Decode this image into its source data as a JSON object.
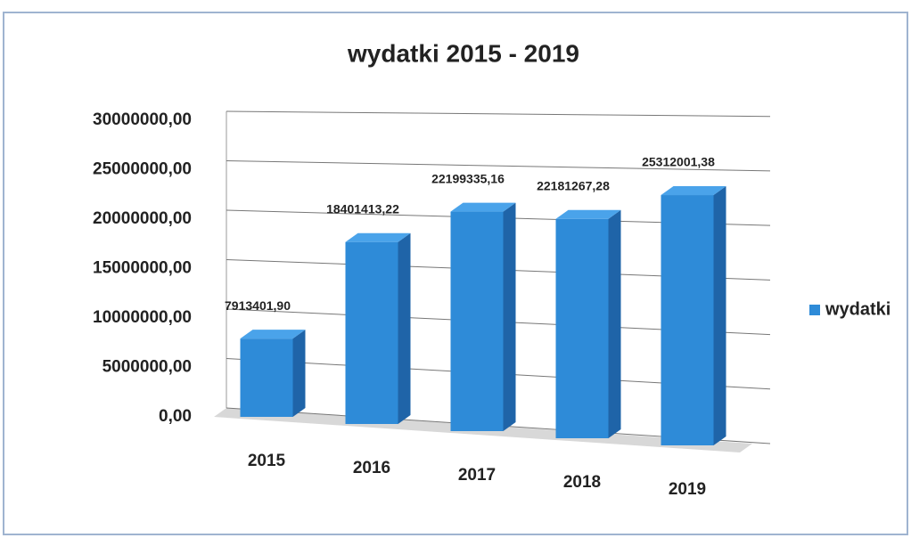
{
  "chart_data": {
    "type": "bar",
    "title": "wydatki 2015 - 2019",
    "categories": [
      "2015",
      "2016",
      "2017",
      "2018",
      "2019"
    ],
    "series": [
      {
        "name": "wydatki",
        "color": "#2e8bd8",
        "values": [
          7913401.9,
          18401413.22,
          22199335.16,
          22181267.28,
          25312001.38
        ],
        "value_labels": [
          "7913401,90",
          "18401413,22",
          "22199335,16",
          "22181267,28",
          "25312001,38"
        ]
      }
    ],
    "ylim": [
      0,
      30000000
    ],
    "yticks": [
      {
        "value": 0,
        "label": "0,00"
      },
      {
        "value": 5000000,
        "label": "5000000,00"
      },
      {
        "value": 10000000,
        "label": "10000000,00"
      },
      {
        "value": 15000000,
        "label": "15000000,00"
      },
      {
        "value": 20000000,
        "label": "20000000,00"
      },
      {
        "value": 25000000,
        "label": "25000000,00"
      },
      {
        "value": 30000000,
        "label": "30000000,00"
      }
    ],
    "grid": true,
    "legend": "right"
  }
}
